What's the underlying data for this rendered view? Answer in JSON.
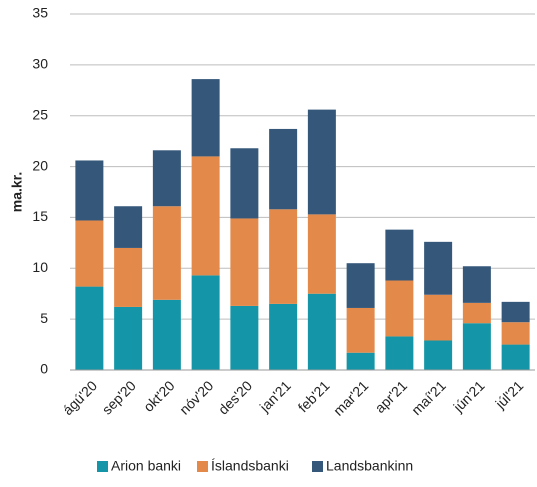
{
  "chart_data": {
    "type": "stacked_bar",
    "y_label": "ma.kr.",
    "categories": [
      "ágú'20",
      "sep'20",
      "okt'20",
      "nóv'20",
      "des'20",
      "jan'21",
      "feb'21",
      "mar'21",
      "apr'21",
      "maí'21",
      "jún'21",
      "júl'21"
    ],
    "series": [
      {
        "name": "Arion banki",
        "color": "#1496a8",
        "values": [
          8.2,
          6.2,
          6.9,
          9.3,
          6.3,
          6.5,
          7.5,
          1.7,
          3.3,
          2.9,
          4.6,
          2.5
        ]
      },
      {
        "name": "Íslandsbanki",
        "color": "#e38a4a",
        "values": [
          6.5,
          5.8,
          9.2,
          11.7,
          8.6,
          9.3,
          7.8,
          4.4,
          5.5,
          4.5,
          2.0,
          2.2
        ]
      },
      {
        "name": "Landsbankinn",
        "color": "#34577a",
        "values": [
          5.9,
          4.1,
          5.5,
          7.6,
          6.9,
          7.9,
          10.3,
          4.4,
          5.0,
          5.2,
          3.6,
          2.0
        ]
      }
    ],
    "ylim": [
      0,
      35
    ],
    "yticks": [
      0,
      5,
      10,
      15,
      20,
      25,
      30,
      35
    ],
    "grid": true,
    "legend": "bottom"
  }
}
